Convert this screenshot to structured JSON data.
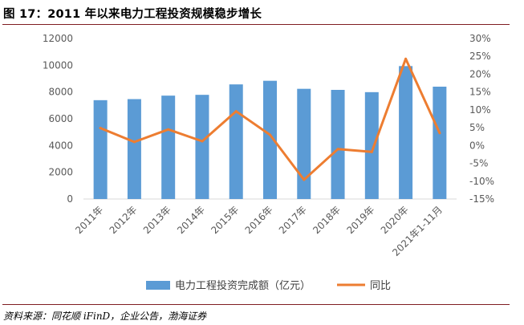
{
  "header": {
    "title": "图 17：2011 年以来电力工程投资规模稳步增长"
  },
  "footer": {
    "source": "资料来源：同花顺 iFinD，企业公告，渤海证券"
  },
  "colors": {
    "bar": "#5b9bd5",
    "line": "#ed7d31",
    "rule": "#7f1d22",
    "gridline": "#d9d9d9"
  },
  "chart_data": {
    "type": "bar",
    "combo_with": "line",
    "title": "",
    "xlabel": "",
    "ylabel": "",
    "categories": [
      "2011年",
      "2012年",
      "2013年",
      "2014年",
      "2015年",
      "2016年",
      "2017年",
      "2018年",
      "2019年",
      "2020年",
      "2021年1-11月"
    ],
    "series": [
      {
        "name": "电力工程投资完成额（亿元）",
        "type": "bar",
        "axis": "left",
        "values": [
          7390,
          7470,
          7730,
          7790,
          8570,
          8840,
          8240,
          8160,
          7990,
          9940,
          8400
        ]
      },
      {
        "name": "同比",
        "type": "line",
        "axis": "right",
        "unit": "%",
        "values": [
          4.9,
          1.0,
          4.5,
          1.2,
          9.6,
          3.0,
          -9.6,
          -1.0,
          -1.8,
          24.3,
          3.5
        ]
      }
    ],
    "ylim": [
      0,
      12000
    ],
    "yticks": [
      0,
      2000,
      4000,
      6000,
      8000,
      10000,
      12000
    ],
    "ytick_labels": [
      "0",
      "2000",
      "4000",
      "6000",
      "8000",
      "10000",
      "12000"
    ],
    "y2lim": [
      -15,
      30
    ],
    "y2ticks": [
      -15,
      -10,
      -5,
      0,
      5,
      10,
      15,
      20,
      25,
      30
    ],
    "y2tick_labels": [
      "-15%",
      "-10%",
      "-5%",
      "0%",
      "5%",
      "10%",
      "15%",
      "20%",
      "25%",
      "30%"
    ],
    "grid": false,
    "legend_position": "bottom-center"
  }
}
